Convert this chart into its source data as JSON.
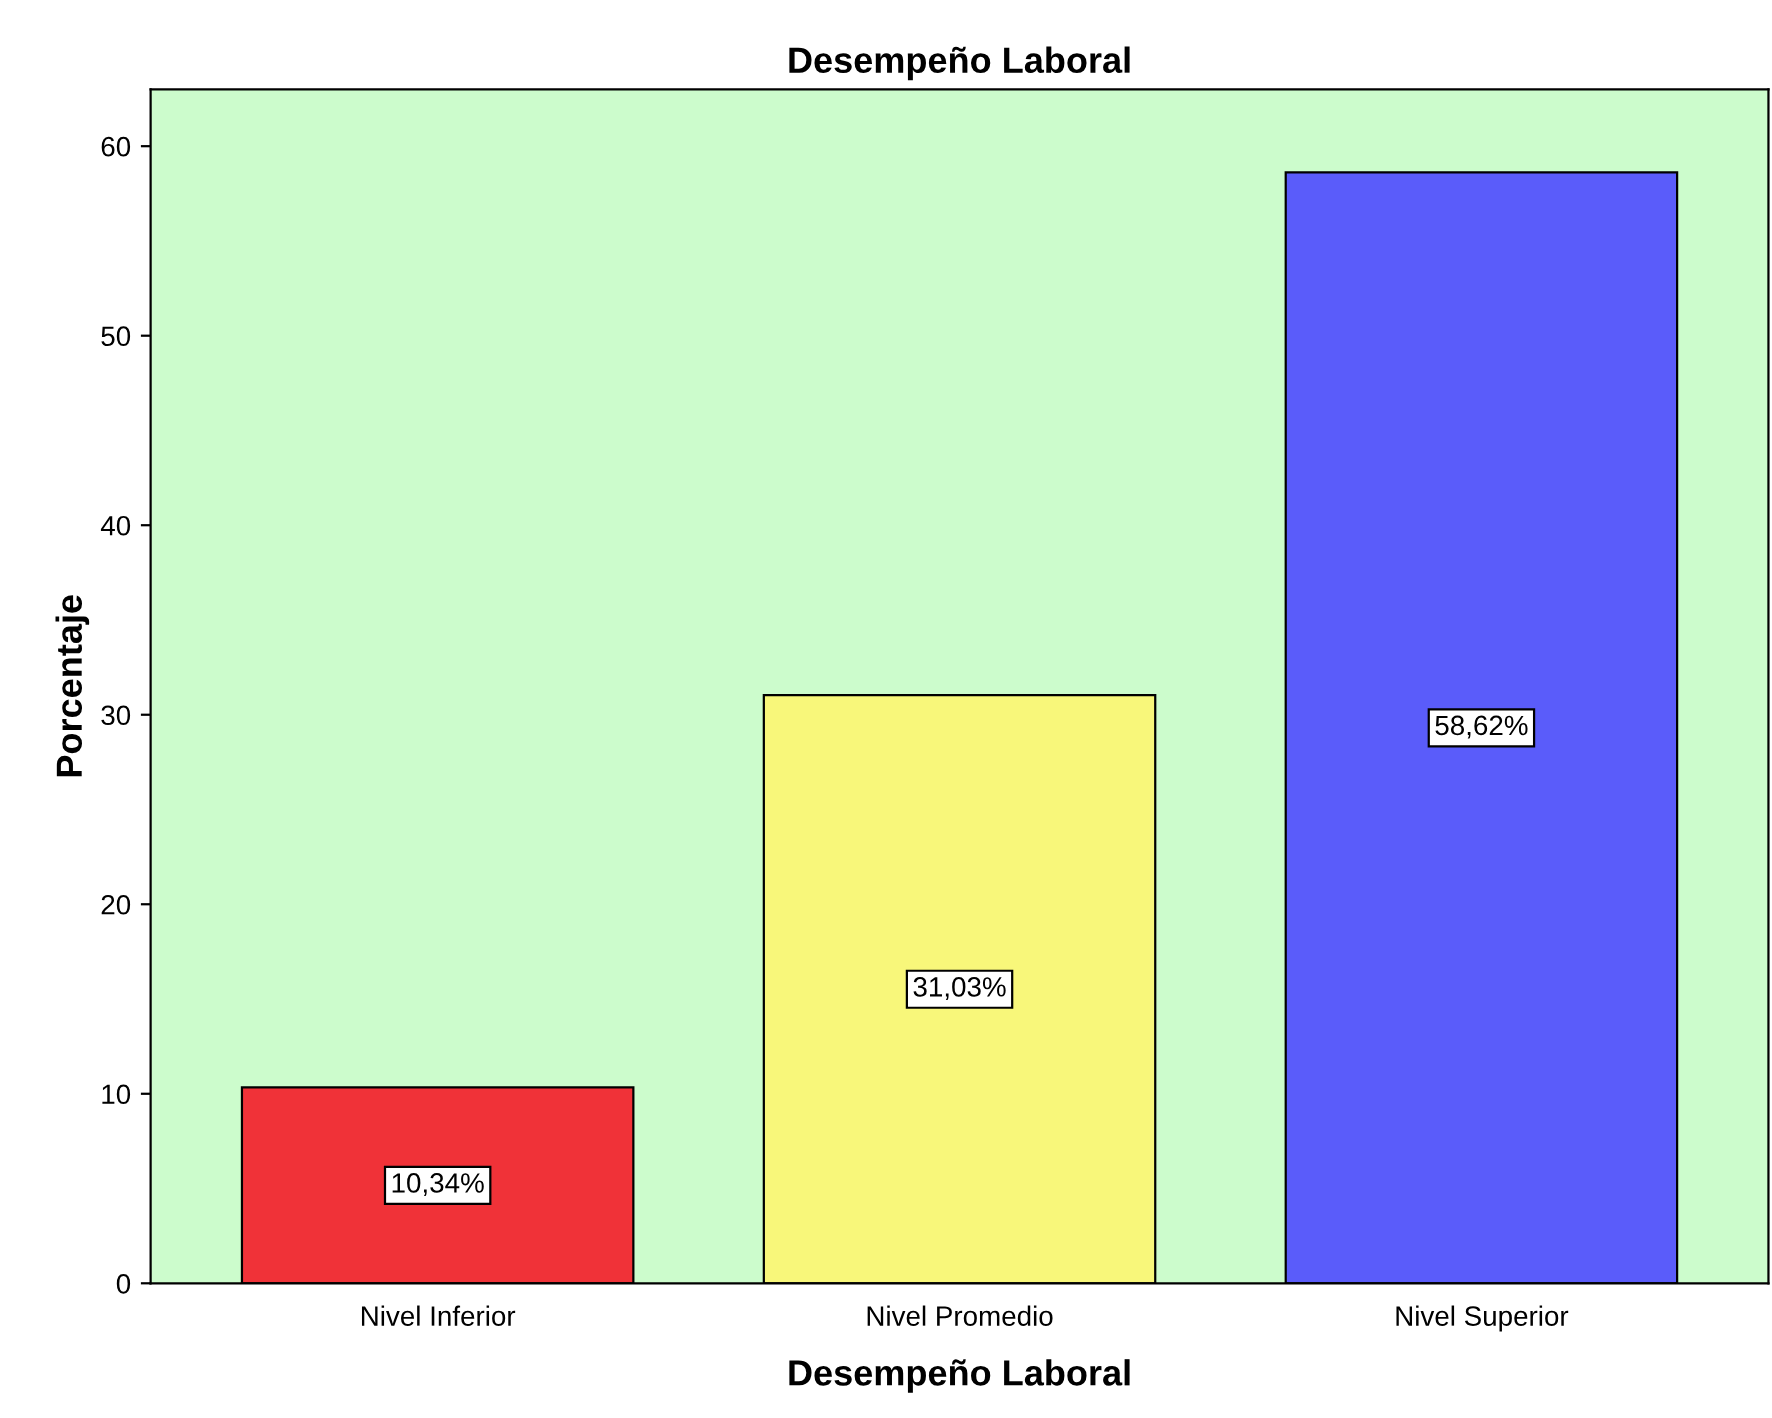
{
  "chart_data": {
    "type": "bar",
    "title": "Desempeño Laboral",
    "xlabel": "Desempeño Laboral",
    "ylabel": "Porcentaje",
    "categories": [
      "Nivel Inferior",
      "Nivel Promedio",
      "Nivel Superior"
    ],
    "values": [
      10.34,
      31.03,
      58.62
    ],
    "colors": [
      "#f03238",
      "#f8f77a",
      "#5a5cfa"
    ],
    "value_labels": [
      "10,34%",
      "31,03%",
      "58,62%"
    ],
    "ylim": [
      0,
      63
    ],
    "yticks": [
      0,
      10,
      20,
      30,
      40,
      50,
      60
    ],
    "grid": false
  }
}
